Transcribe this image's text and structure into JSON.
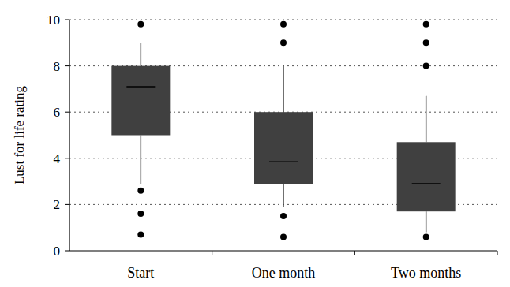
{
  "chart_data": {
    "type": "box",
    "y_label": "Lust for life rating",
    "categories": [
      "Start",
      "One month",
      "Two months"
    ],
    "boxes": [
      {
        "min": 2.9,
        "q1": 5.0,
        "median": 7.1,
        "q3": 8.0,
        "max": 9.0,
        "outliers": [
          9.8,
          2.6,
          1.6,
          0.7
        ]
      },
      {
        "min": 1.9,
        "q1": 2.9,
        "median": 3.85,
        "q3": 6.0,
        "max": 8.0,
        "outliers": [
          9.8,
          9.0,
          1.5,
          0.6
        ]
      },
      {
        "min": 0.8,
        "q1": 1.7,
        "median": 2.9,
        "q3": 4.7,
        "max": 6.7,
        "outliers": [
          9.8,
          9.0,
          8.0,
          0.6
        ]
      }
    ],
    "color": "#404040",
    "ylim": [
      0,
      10
    ],
    "yticks": [
      0,
      2,
      4,
      6,
      8,
      10
    ],
    "grid": true
  }
}
